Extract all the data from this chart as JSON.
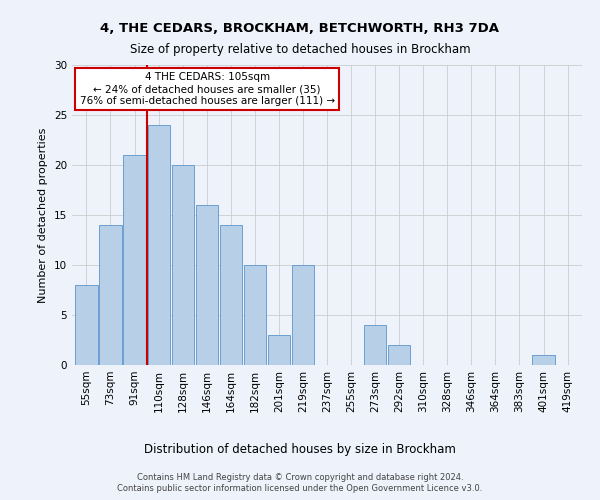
{
  "title1": "4, THE CEDARS, BROCKHAM, BETCHWORTH, RH3 7DA",
  "title2": "Size of property relative to detached houses in Brockham",
  "xlabel": "Distribution of detached houses by size in Brockham",
  "ylabel": "Number of detached properties",
  "categories": [
    "55sqm",
    "73sqm",
    "91sqm",
    "110sqm",
    "128sqm",
    "146sqm",
    "164sqm",
    "182sqm",
    "201sqm",
    "219sqm",
    "237sqm",
    "255sqm",
    "273sqm",
    "292sqm",
    "310sqm",
    "328sqm",
    "346sqm",
    "364sqm",
    "383sqm",
    "401sqm",
    "419sqm"
  ],
  "values": [
    8,
    14,
    21,
    24,
    20,
    16,
    14,
    10,
    3,
    10,
    0,
    0,
    4,
    2,
    0,
    0,
    0,
    0,
    0,
    1,
    0
  ],
  "bar_color": "#b8cfe8",
  "bar_edge_color": "#6a9fd0",
  "ylim": [
    0,
    30
  ],
  "yticks": [
    0,
    5,
    10,
    15,
    20,
    25,
    30
  ],
  "annotation_text": "4 THE CEDARS: 105sqm\n← 24% of detached houses are smaller (35)\n76% of semi-detached houses are larger (111) →",
  "redline_index": 3,
  "box_color": "#cc0000",
  "footer1": "Contains HM Land Registry data © Crown copyright and database right 2024.",
  "footer2": "Contains public sector information licensed under the Open Government Licence v3.0.",
  "bg_color": "#eef2fb",
  "title1_fontsize": 9.5,
  "title2_fontsize": 8.5,
  "ylabel_fontsize": 8,
  "xlabel_fontsize": 8.5,
  "tick_fontsize": 7.5,
  "annotation_fontsize": 7.5,
  "footer_fontsize": 6
}
